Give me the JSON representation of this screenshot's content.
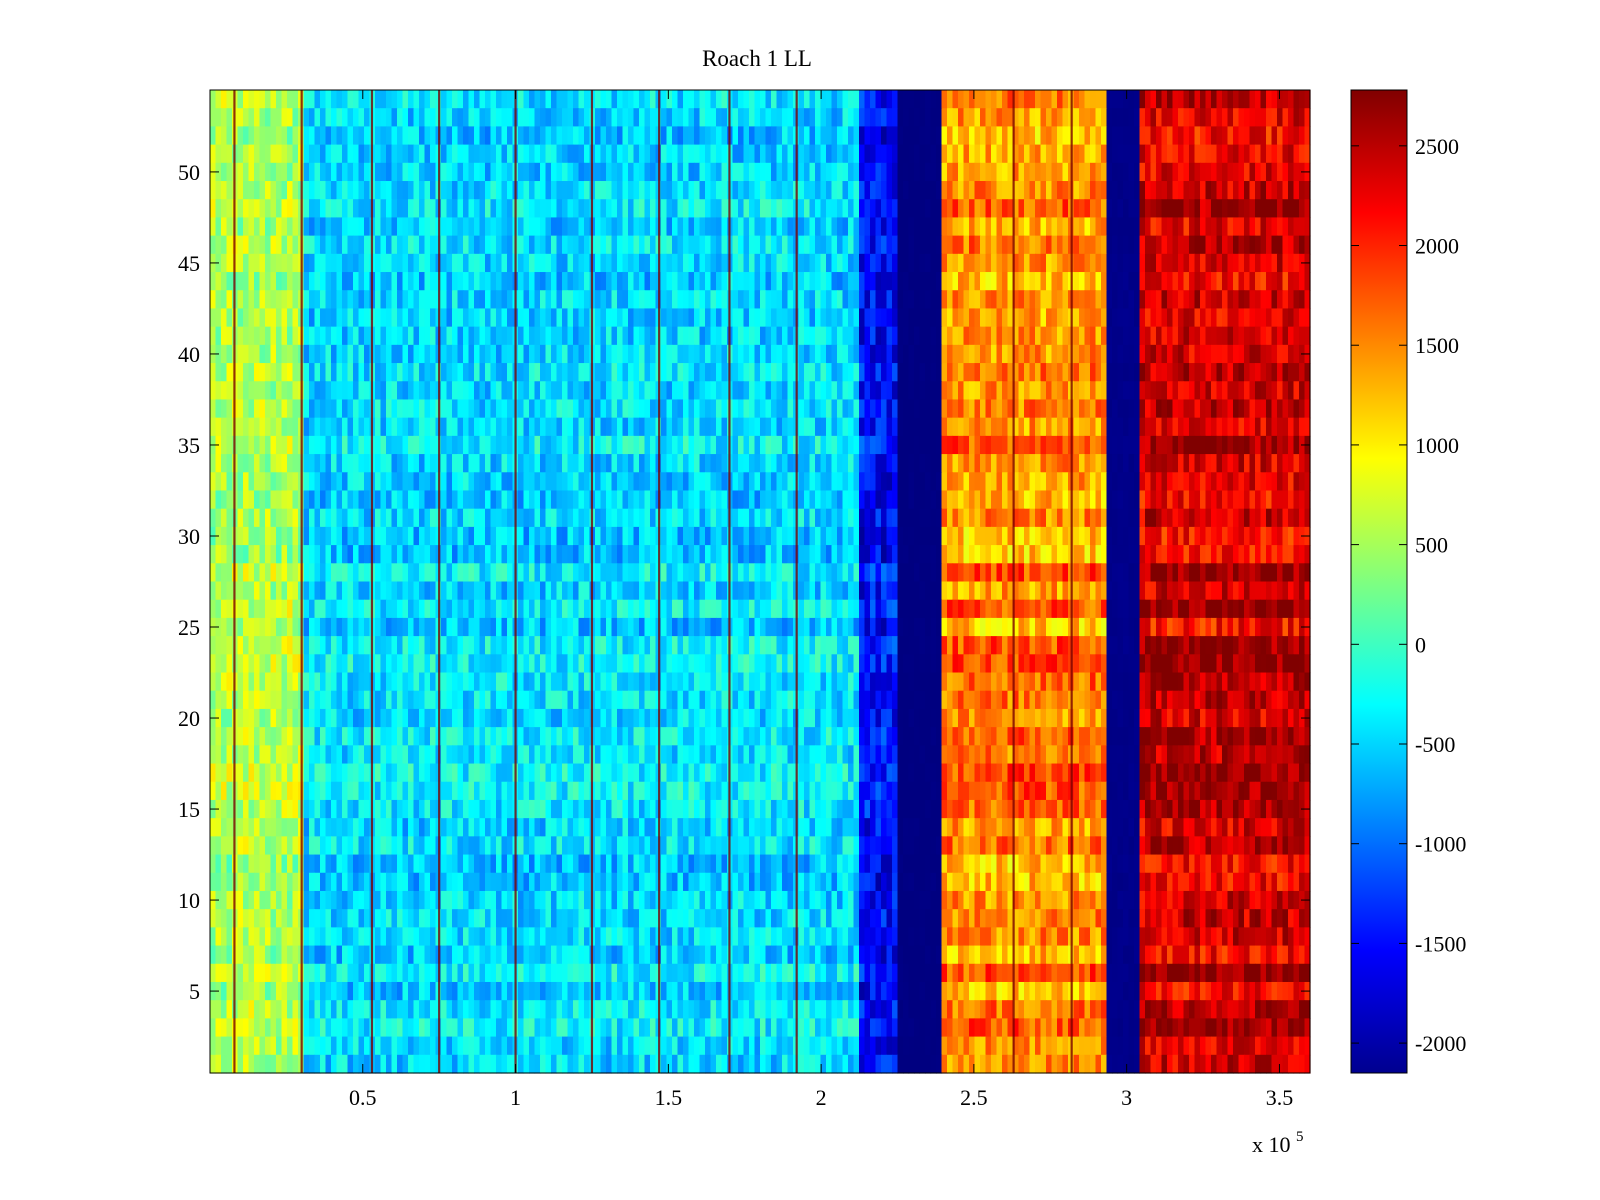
{
  "chart_data": {
    "type": "heatmap",
    "title": "Roach 1 LL",
    "xlabel": "",
    "ylabel": "",
    "x_multiplier_label": "x 10",
    "x_multiplier_exponent": "5",
    "xlim": [
      0,
      3.6
    ],
    "ylim": [
      0.5,
      54.5
    ],
    "xticks": [
      0.5,
      1,
      1.5,
      2,
      2.5,
      3,
      3.5
    ],
    "xtick_labels": [
      "0.5",
      "1",
      "1.5",
      "2",
      "2.5",
      "3",
      "3.5"
    ],
    "yticks": [
      5,
      10,
      15,
      20,
      25,
      30,
      35,
      40,
      45,
      50
    ],
    "ytick_labels": [
      "5",
      "10",
      "15",
      "20",
      "25",
      "30",
      "35",
      "40",
      "45",
      "50"
    ],
    "colorbar": {
      "colormap": "jet",
      "clim": [
        -2150,
        2780
      ],
      "ticks": [
        -2000,
        -1500,
        -1000,
        -500,
        0,
        500,
        1000,
        1500,
        2000,
        2500
      ],
      "tick_labels": [
        "-2000",
        "-1500",
        "-1000",
        "-500",
        "0",
        "500",
        "1000",
        "1500",
        "2000",
        "2500"
      ]
    },
    "rows": 54,
    "segments": [
      {
        "x_start": 0.0,
        "x_end": 0.3,
        "mean_value": 550,
        "description": "yellow-green"
      },
      {
        "x_start": 0.3,
        "x_end": 2.13,
        "mean_value": -450,
        "description": "cyan"
      },
      {
        "x_start": 2.13,
        "x_end": 2.25,
        "mean_value": -1500,
        "description": "blue"
      },
      {
        "x_start": 2.25,
        "x_end": 2.4,
        "mean_value": -2150,
        "description": "dark blue"
      },
      {
        "x_start": 2.4,
        "x_end": 2.93,
        "mean_value": 1500,
        "description": "orange"
      },
      {
        "x_start": 2.93,
        "x_end": 3.04,
        "mean_value": -2100,
        "description": "dark blue"
      },
      {
        "x_start": 3.04,
        "x_end": 3.6,
        "mean_value": 2400,
        "description": "dark red"
      }
    ],
    "vertical_lines_x": [
      0.08,
      0.3,
      0.53,
      0.75,
      1.0,
      1.25,
      1.47,
      1.7,
      1.92,
      2.63,
      2.82
    ]
  }
}
